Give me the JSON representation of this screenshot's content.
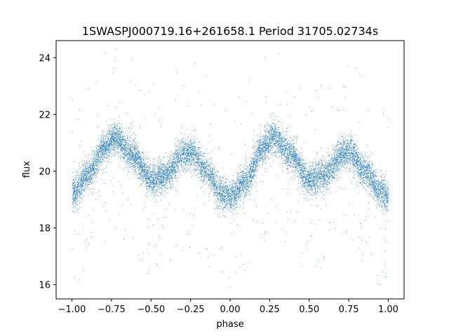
{
  "chart_data": {
    "type": "scatter",
    "title": "1SWASPJ000719.16+261658.1 Period 31705.02734s",
    "xlabel": "phase",
    "ylabel": "flux",
    "xlim": [
      -1.1,
      1.1
    ],
    "ylim": [
      15.5,
      24.6
    ],
    "xticks": [
      -1.0,
      -0.75,
      -0.5,
      -0.25,
      0.0,
      0.25,
      0.5,
      0.75,
      1.0
    ],
    "xtick_labels": [
      "−1.00",
      "−0.75",
      "−0.50",
      "−0.25",
      "0.00",
      "0.25",
      "0.50",
      "0.75",
      "1.00"
    ],
    "yticks": [
      16,
      18,
      20,
      22,
      24
    ],
    "ytick_labels": [
      "16",
      "18",
      "20",
      "22",
      "24"
    ],
    "grid": false,
    "marker_color": "#1f77b4",
    "folded_curve_keypoints": {
      "x": [
        -1.0,
        -0.9,
        -0.8,
        -0.73,
        -0.62,
        -0.5,
        -0.4,
        -0.3,
        -0.25,
        -0.15,
        -0.05,
        0.0,
        0.1,
        0.2,
        0.27,
        0.38,
        0.5,
        0.6,
        0.7,
        0.75,
        0.85,
        0.95,
        1.0
      ],
      "y": [
        19.2,
        19.9,
        20.8,
        21.2,
        20.6,
        19.7,
        19.9,
        20.6,
        20.7,
        20.0,
        19.2,
        19.1,
        19.7,
        20.8,
        21.2,
        20.6,
        19.7,
        19.9,
        20.6,
        20.7,
        20.0,
        19.3,
        19.1
      ]
    },
    "series": [
      {
        "values_description_free": true,
        "point_count_estimate": 12000
      }
    ]
  }
}
